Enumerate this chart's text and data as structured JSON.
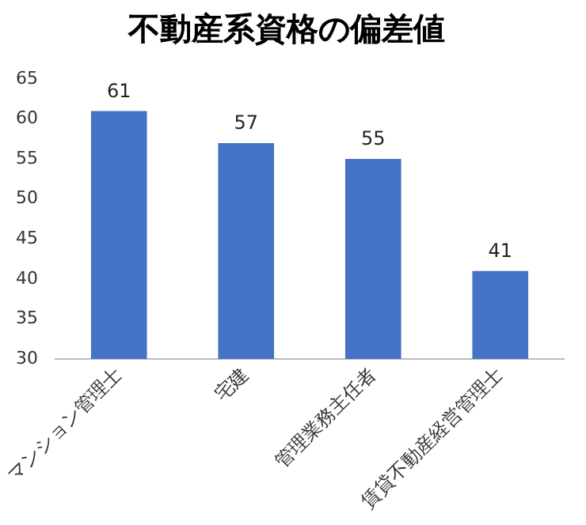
{
  "chart_data": {
    "type": "bar",
    "title": "不動産系資格の偏差値",
    "categories": [
      "マンション管理士",
      "宅建",
      "管理業務主任者",
      "賃貸不動産経営管理士"
    ],
    "values": [
      61,
      57,
      55,
      41
    ],
    "color": "#4472c4",
    "ylim": [
      30,
      65
    ],
    "yticks": [
      30,
      35,
      40,
      45,
      50,
      55,
      60,
      65
    ],
    "grid": false,
    "legend": false,
    "data_labels": true
  }
}
